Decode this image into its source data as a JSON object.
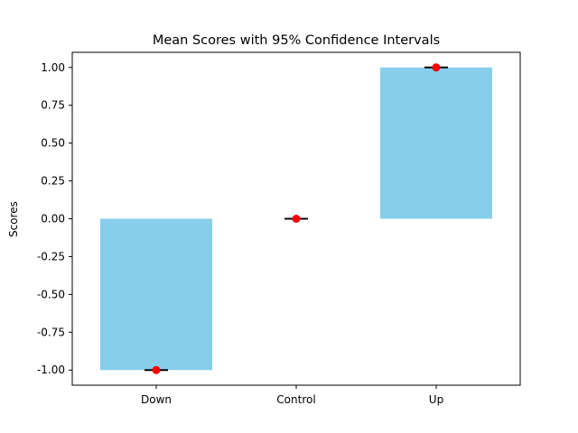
{
  "chart_data": {
    "type": "bar",
    "title": "Mean Scores with 95% Confidence Intervals",
    "xlabel": "",
    "ylabel": "Scores",
    "categories": [
      "Down",
      "Control",
      "Up"
    ],
    "values": [
      -1.0,
      0.0,
      1.0
    ],
    "ci_lower": [
      -1.0,
      0.0,
      1.0
    ],
    "ci_upper": [
      -1.0,
      0.0,
      1.0
    ],
    "ylim": [
      -1.1,
      1.1
    ],
    "yticks": [
      "-1.00",
      "-0.75",
      "-0.50",
      "-0.25",
      "0.00",
      "0.25",
      "0.50",
      "0.75",
      "1.00"
    ],
    "grid": false,
    "legend": "none",
    "colors": {
      "bar": "#87ceeb",
      "mean_marker": "#ff0000",
      "errorbar": "#000000",
      "axis": "#000000"
    }
  }
}
